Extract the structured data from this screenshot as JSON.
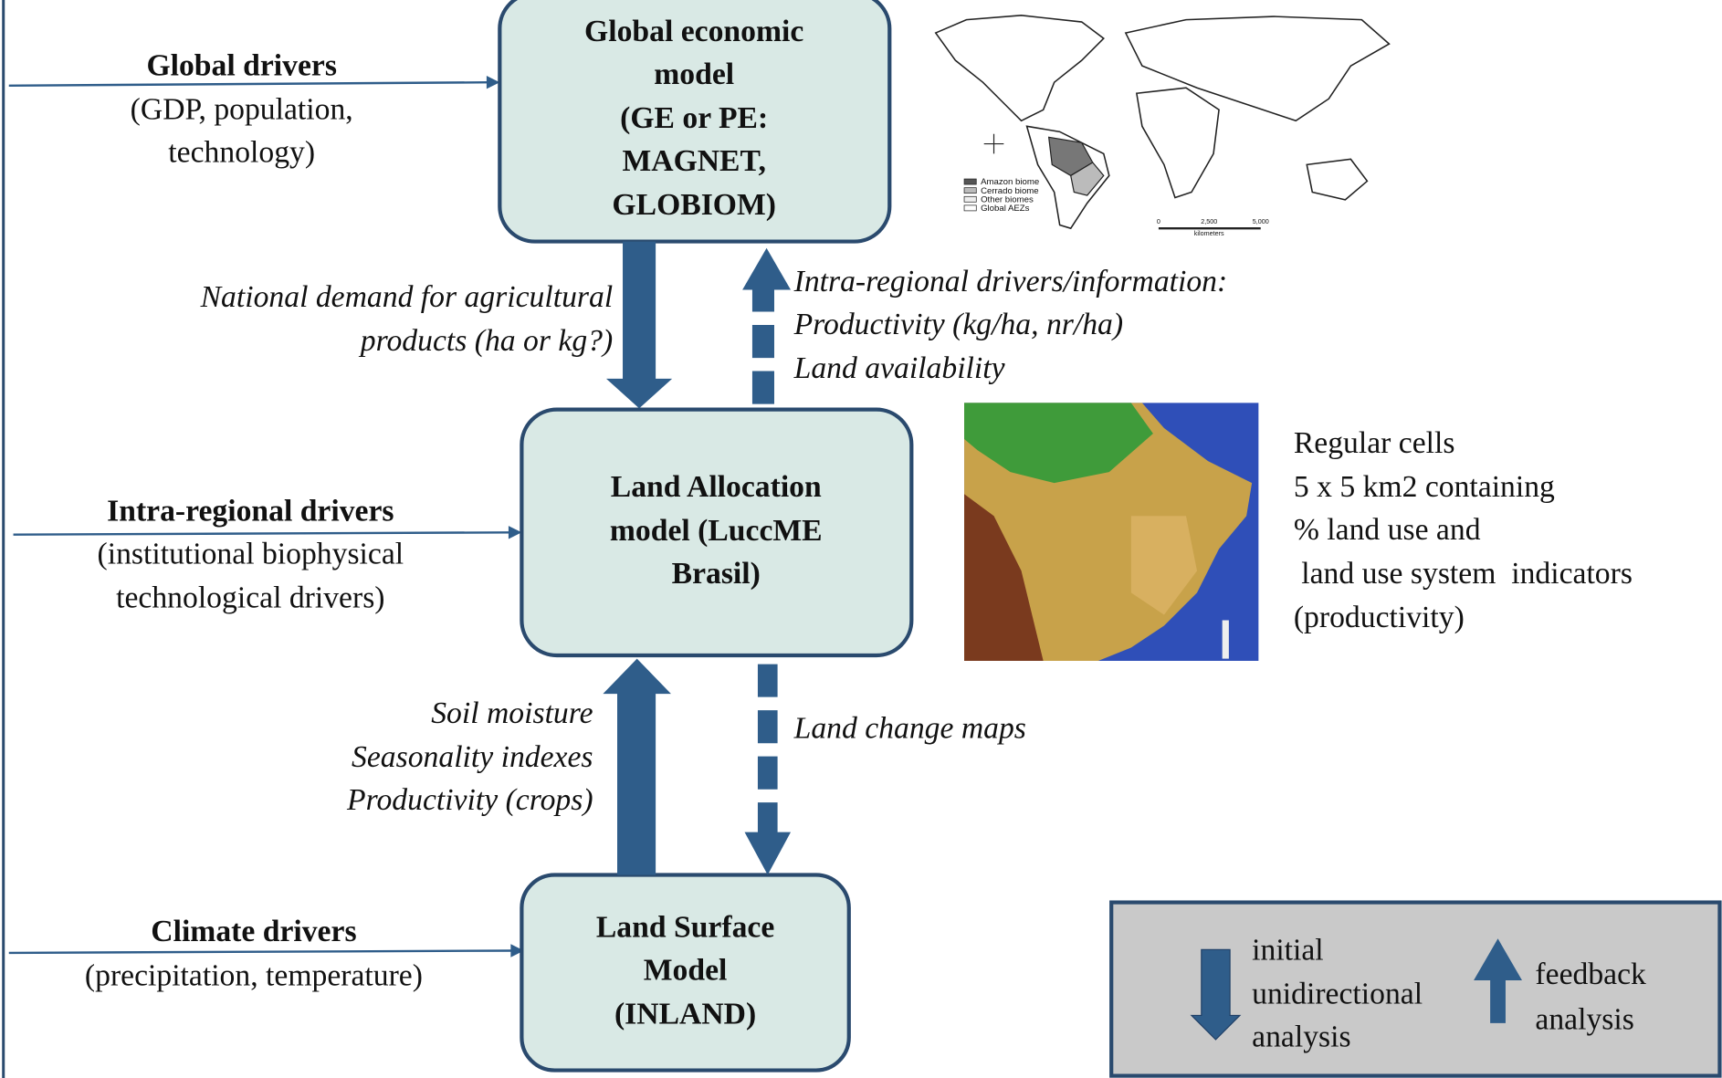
{
  "nodes": [
    {
      "label": [
        "Global economic",
        "model",
        "(GE or   PE:",
        "MAGNET,",
        "GLOBIOM)"
      ]
    },
    {
      "label": [
        "Land Allocation",
        "model (LuccME",
        "Brasil)"
      ]
    },
    {
      "label": [
        "Land Surface",
        "Model",
        "(INLAND)"
      ]
    }
  ],
  "drivers": [
    {
      "title": "Global drivers",
      "detail": [
        "(GDP, population,",
        "technology)"
      ]
    },
    {
      "title": "Intra-regional drivers",
      "detail": [
        "(institutional biophysical",
        "technological drivers)"
      ]
    },
    {
      "title": "Climate drivers",
      "detail": [
        "(precipitation, temperature)"
      ]
    }
  ],
  "flows": [
    {
      "label": [
        "National demand for agricultural",
        "products (ha or kg?)"
      ]
    },
    {
      "label": [
        "Intra-regional drivers/information:",
        "Productivity (kg/ha, nr/ha)",
        "Land availability"
      ]
    },
    {
      "label": [
        "Soil moisture",
        "Seasonality indexes",
        "Productivity (crops)"
      ]
    },
    {
      "label": [
        "Land change maps"
      ]
    }
  ],
  "world_map": {
    "legend": [
      "Amazon biome",
      "Cerrado biome",
      "Other biomes",
      "Global AEZs"
    ],
    "scale": [
      "0",
      "2,500",
      "5,000",
      "kilometers"
    ]
  },
  "grid_note": [
    "Regular cells",
    "5 x 5 km2 containing",
    "% land use and",
    " land use system  indicators",
    "(productivity)"
  ],
  "legend": {
    "items": [
      {
        "label": [
          "initial",
          "unidirectional",
          "analysis"
        ]
      },
      {
        "label": [
          "feedback",
          "analysis"
        ]
      }
    ]
  }
}
